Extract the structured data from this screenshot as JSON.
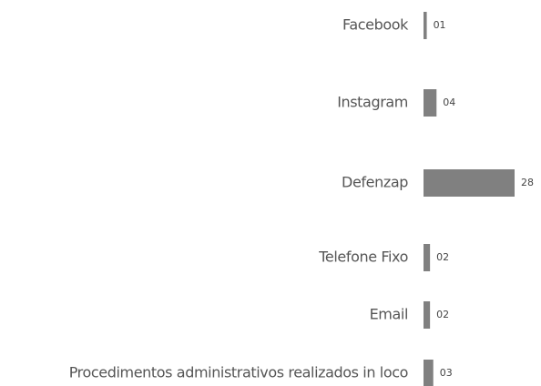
{
  "chart_data": {
    "type": "bar",
    "orientation": "horizontal",
    "categories": [
      "Facebook",
      "Instagram",
      "Defenzap",
      "Telefone Fixo",
      "Email",
      "Procedimentos administrativos realizados in loco"
    ],
    "values": [
      1,
      4,
      28,
      2,
      2,
      3
    ],
    "value_labels": [
      "01",
      "04",
      "28",
      "02",
      "02",
      "03"
    ],
    "color": "#808080"
  }
}
